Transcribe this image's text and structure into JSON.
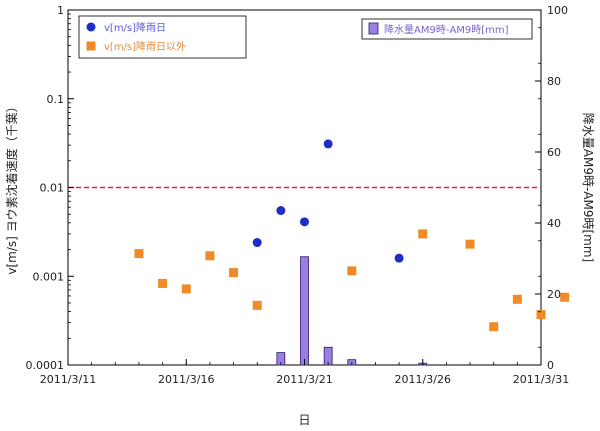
{
  "chart_data": {
    "type": "scatter",
    "title": "",
    "xlabel": "日",
    "ylabel_left": "v[m/s] ヨウ素沈着速度（千葉）",
    "ylabel_right": "降水量AM9時-AM9時[mm]",
    "x_ticks": [
      "2011/3/11",
      "2011/3/16",
      "2011/3/21",
      "2011/3/26",
      "2011/3/31"
    ],
    "x_range": [
      "2011/3/11",
      "2011/3/31"
    ],
    "y_left_scale": "log",
    "y_left_range": [
      0.0001,
      1
    ],
    "y_left_ticks": [
      "0.0001",
      "0.001",
      "0.01",
      "0.1",
      "1"
    ],
    "y_right_range": [
      0,
      100
    ],
    "y_right_ticks": [
      "0",
      "20",
      "40",
      "60",
      "80",
      "100"
    ],
    "reference_line": {
      "y": 0.01,
      "style": "dashed",
      "color": "#e0204a"
    },
    "series": [
      {
        "name": "v[m/s]降雨日",
        "kind": "scatter",
        "marker": "circle",
        "color": "#1f2ec9",
        "axis": "left",
        "points": [
          {
            "x": "2011/3/19",
            "y": 0.0024
          },
          {
            "x": "2011/3/20",
            "y": 0.0055
          },
          {
            "x": "2011/3/21",
            "y": 0.0041
          },
          {
            "x": "2011/3/22",
            "y": 0.031
          },
          {
            "x": "2011/3/25",
            "y": 0.0016
          }
        ]
      },
      {
        "name": "v[m/s]降雨日以外",
        "kind": "scatter",
        "marker": "square",
        "color": "#f08a24",
        "axis": "left",
        "points": [
          {
            "x": "2011/3/14",
            "y": 0.0018
          },
          {
            "x": "2011/3/15",
            "y": 0.00083
          },
          {
            "x": "2011/3/16",
            "y": 0.00072
          },
          {
            "x": "2011/3/17",
            "y": 0.0017
          },
          {
            "x": "2011/3/18",
            "y": 0.0011
          },
          {
            "x": "2011/3/19",
            "y": 0.00047
          },
          {
            "x": "2011/3/23",
            "y": 0.00115
          },
          {
            "x": "2011/3/26",
            "y": 0.003
          },
          {
            "x": "2011/3/28",
            "y": 0.0023
          },
          {
            "x": "2011/3/29",
            "y": 0.00027
          },
          {
            "x": "2011/3/30",
            "y": 0.00055
          },
          {
            "x": "2011/3/31",
            "y": 0.00037
          },
          {
            "x": "2011/4/1",
            "y": 0.00058
          }
        ]
      },
      {
        "name": "降水量AM9時-AM9時[mm]",
        "kind": "bar",
        "color": "#9a7fe0",
        "axis": "right",
        "points": [
          {
            "x": "2011/3/20",
            "y": 3.5
          },
          {
            "x": "2011/3/21",
            "y": 30.5
          },
          {
            "x": "2011/3/22",
            "y": 5
          },
          {
            "x": "2011/3/23",
            "y": 1.5
          },
          {
            "x": "2011/3/26",
            "y": 0.5
          }
        ]
      }
    ],
    "legend_left_position": "top-left",
    "legend_right_position": "top-right",
    "grid": false
  }
}
